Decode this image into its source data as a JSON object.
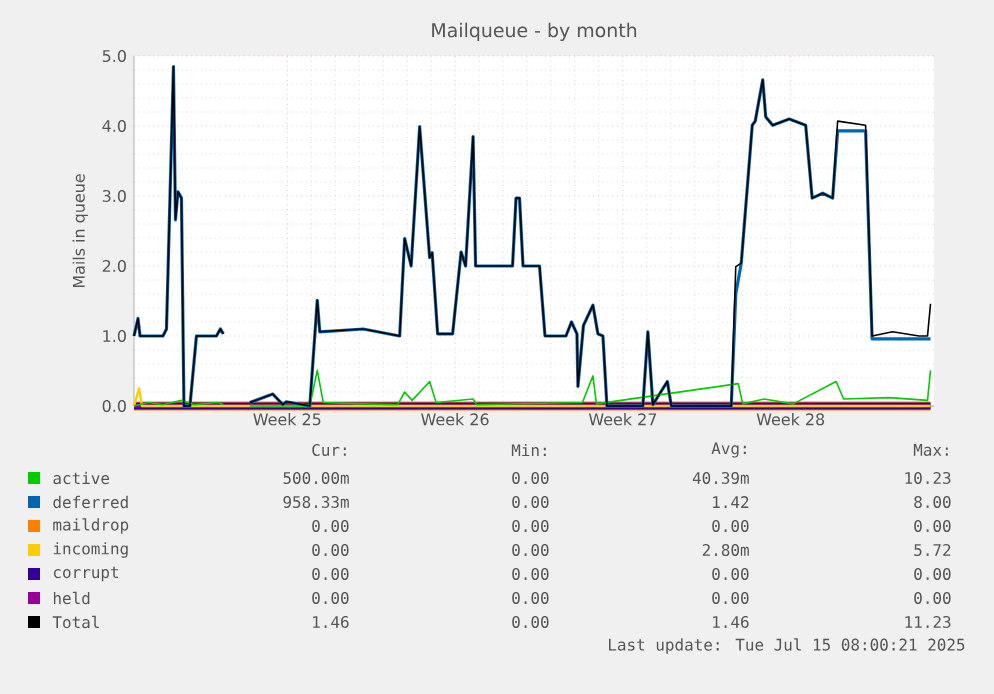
{
  "chart_data": {
    "type": "line",
    "title": "Mailqueue - by month",
    "ylabel": "Mails in queue",
    "xlim": [
      "2025-06-11T23:00",
      "2025-07-15T08:00"
    ],
    "ylim": [
      0,
      5
    ],
    "xticks": [
      {
        "value": "2025-06-18T08:30",
        "label": "Week 25"
      },
      {
        "value": "2025-06-25T08:30",
        "label": "Week 26"
      },
      {
        "value": "2025-07-02T08:30",
        "label": "Week 27"
      },
      {
        "value": "2025-07-09T08:30",
        "label": "Week 28"
      }
    ],
    "yticks": [
      {
        "value": 0,
        "label": "0.0"
      },
      {
        "value": 1,
        "label": "1.0"
      },
      {
        "value": 2,
        "label": "2.0"
      },
      {
        "value": 3,
        "label": "3.0"
      },
      {
        "value": 4,
        "label": "4.0"
      },
      {
        "value": 5,
        "label": "5.0"
      }
    ],
    "grid": true,
    "legend": "bottom",
    "marker": "none",
    "line_style": "solid",
    "series": [
      {
        "name": "active",
        "color": "#00cc00",
        "x": [
          "2025-06-11T23:00",
          "2025-06-12T13:30",
          "2025-06-13T04:00",
          "2025-06-13T23:00",
          "2025-06-14T11:00",
          "2025-06-15T11:00",
          "2025-06-15T16:30",
          "2025-06-16T04:00",
          "2025-06-16T19:00",
          "2025-06-19T07:00",
          "2025-06-19T14:30",
          "2025-06-19T20:30",
          "2025-06-21T11:00",
          "2025-06-22T23:00",
          "2025-06-23T06:00",
          "2025-06-23T13:30",
          "2025-06-24T07:00",
          "2025-06-24T13:30",
          "2025-06-26T02:30",
          "2025-06-26T06:00",
          "2025-06-30T16:00",
          "2025-07-01T02:30",
          "2025-07-01T06:00",
          "2025-07-07T04:00",
          "2025-07-07T08:30",
          "2025-07-08T06:00",
          "2025-07-09T11:00",
          "2025-07-11T06:00",
          "2025-07-11T13:30",
          "2025-07-13T11:00",
          "2025-07-15T01:30",
          "2025-07-15T04:30"
        ],
        "values": [
          0,
          0.05,
          0.02,
          0.08,
          0.02,
          0.05,
          0.02,
          null,
          0,
          0,
          0.51,
          0.05,
          0.03,
          0.02,
          0.2,
          0.08,
          0.35,
          0.05,
          0.1,
          0.02,
          0.05,
          0.43,
          0.03,
          0.32,
          0.03,
          0.1,
          0.03,
          0.35,
          0.1,
          0.12,
          0.08,
          0.51
        ]
      },
      {
        "name": "deferred",
        "color": "#0066b3",
        "x": [
          "2025-06-11T23:00",
          "2025-06-12T03:00",
          "2025-06-12T05:00",
          "2025-06-13T04:00",
          "2025-06-13T07:30",
          "2025-06-13T14:30",
          "2025-06-13T16:30",
          "2025-06-13T19:00",
          "2025-06-13T22:30",
          "2025-06-14T01:00",
          "2025-06-14T07:00",
          "2025-06-14T13:30",
          "2025-06-15T09:30",
          "2025-06-15T13:30",
          "2025-06-15T16:30",
          "2025-06-16T04:00",
          "2025-06-16T19:00",
          "2025-06-17T18:00",
          "2025-06-18T04:00",
          "2025-06-18T07:30",
          "2025-06-19T07:00",
          "2025-06-19T14:30",
          "2025-06-19T17:00",
          "2025-06-21T12:30",
          "2025-06-23T01:00",
          "2025-06-23T06:00",
          "2025-06-23T12:30",
          "2025-06-23T21:00",
          "2025-06-24T07:00",
          "2025-06-24T09:30",
          "2025-06-24T15:00",
          "2025-06-25T06:00",
          "2025-06-25T14:30",
          "2025-06-25T19:00",
          "2025-06-26T02:30",
          "2025-06-26T05:00",
          "2025-06-27T18:00",
          "2025-06-27T21:30",
          "2025-06-28T01:00",
          "2025-06-28T04:30",
          "2025-06-28T21:00",
          "2025-06-29T02:30",
          "2025-06-29T23:30",
          "2025-06-30T05:00",
          "2025-06-30T10:30",
          "2025-06-30T11:30",
          "2025-06-30T17:00",
          "2025-07-01T02:30",
          "2025-07-01T07:30",
          "2025-07-01T12:30",
          "2025-07-01T16:30",
          "2025-07-03T04:30",
          "2025-07-03T09:30",
          "2025-07-03T14:30",
          "2025-07-04T05:00",
          "2025-07-04T09:00",
          "2025-07-06T21:00",
          "2025-07-07T01:30",
          "2025-07-07T07:00",
          "2025-07-07T18:00",
          "2025-07-07T21:00",
          "2025-07-08T04:30",
          "2025-07-08T07:30",
          "2025-07-08T14:30",
          "2025-07-09T07:00",
          "2025-07-09T23:30",
          "2025-07-10T06:00",
          "2025-07-10T16:30",
          "2025-07-11T02:30",
          "2025-07-11T07:30",
          "2025-07-12T11:30",
          "2025-07-12T18:00",
          "2025-07-13T14:30",
          "2025-07-14T17:00",
          "2025-07-15T01:30",
          "2025-07-15T04:30"
        ],
        "values": [
          1.0,
          1.25,
          1.0,
          1.0,
          1.1,
          4.85,
          2.66,
          3.06,
          2.97,
          0,
          0,
          1.0,
          1.0,
          1.1,
          1.03,
          null,
          0.05,
          0.17,
          0.02,
          0.06,
          0,
          1.51,
          1.06,
          1.1,
          1.0,
          2.39,
          2.0,
          3.99,
          2.12,
          2.19,
          1.03,
          1.03,
          2.2,
          2.0,
          3.85,
          2.0,
          2.0,
          2.97,
          2.97,
          2.0,
          2.0,
          1.0,
          1.0,
          1.2,
          1.03,
          0.28,
          1.15,
          1.44,
          1.03,
          1.0,
          0,
          0,
          1.06,
          0.02,
          0.35,
          0,
          0,
          1.6,
          2.04,
          4.01,
          4.07,
          4.66,
          4.13,
          4.01,
          4.1,
          4.01,
          2.97,
          3.04,
          2.97,
          3.93,
          3.93,
          0.96,
          0.96,
          0.96,
          0.96,
          0.96
        ]
      },
      {
        "name": "maildrop",
        "color": "#ff8000",
        "x": [
          "2025-06-11T23:00",
          "2025-07-15T04:30"
        ],
        "values": [
          0,
          0
        ]
      },
      {
        "name": "incoming",
        "color": "#ffcc00",
        "x": [
          "2025-06-11T23:00",
          "2025-06-12T04:00",
          "2025-06-12T07:00",
          "2025-07-15T04:30"
        ],
        "values": [
          0,
          0.25,
          0,
          0
        ]
      },
      {
        "name": "corrupt",
        "color": "#330099",
        "x": [
          "2025-06-11T23:00",
          "2025-07-15T04:30"
        ],
        "values": [
          0,
          0
        ]
      },
      {
        "name": "held",
        "color": "#990099",
        "x": [
          "2025-06-11T23:00",
          "2025-07-15T04:30"
        ],
        "values": [
          0,
          0
        ]
      },
      {
        "name": "Total",
        "color": "#000000",
        "x": [
          "2025-06-11T23:00",
          "2025-06-12T03:00",
          "2025-06-12T05:00",
          "2025-06-13T04:00",
          "2025-06-13T07:30",
          "2025-06-13T14:30",
          "2025-06-13T16:30",
          "2025-06-13T19:00",
          "2025-06-13T22:30",
          "2025-06-14T01:00",
          "2025-06-14T07:00",
          "2025-06-14T13:30",
          "2025-06-15T09:30",
          "2025-06-15T13:30",
          "2025-06-15T16:30",
          "2025-06-16T04:00",
          "2025-06-16T19:00",
          "2025-06-17T18:00",
          "2025-06-18T04:00",
          "2025-06-18T07:30",
          "2025-06-19T07:00",
          "2025-06-19T14:30",
          "2025-06-19T17:00",
          "2025-06-21T12:30",
          "2025-06-23T01:00",
          "2025-06-23T06:00",
          "2025-06-23T12:30",
          "2025-06-23T21:00",
          "2025-06-24T07:00",
          "2025-06-24T09:30",
          "2025-06-24T15:00",
          "2025-06-25T06:00",
          "2025-06-25T14:30",
          "2025-06-25T19:00",
          "2025-06-26T02:30",
          "2025-06-26T05:00",
          "2025-06-27T18:00",
          "2025-06-27T21:30",
          "2025-06-28T01:00",
          "2025-06-28T04:30",
          "2025-06-28T21:00",
          "2025-06-29T02:30",
          "2025-06-29T23:30",
          "2025-06-30T05:00",
          "2025-06-30T10:30",
          "2025-06-30T11:30",
          "2025-06-30T17:00",
          "2025-07-01T02:30",
          "2025-07-01T07:30",
          "2025-07-01T12:30",
          "2025-07-01T16:30",
          "2025-07-03T04:30",
          "2025-07-03T09:30",
          "2025-07-03T14:30",
          "2025-07-04T05:00",
          "2025-07-04T09:00",
          "2025-07-06T21:00",
          "2025-07-07T01:30",
          "2025-07-07T07:00",
          "2025-07-07T18:00",
          "2025-07-07T21:00",
          "2025-07-08T04:30",
          "2025-07-08T07:30",
          "2025-07-08T14:30",
          "2025-07-09T07:00",
          "2025-07-09T23:30",
          "2025-07-10T06:00",
          "2025-07-10T16:30",
          "2025-07-11T02:30",
          "2025-07-11T07:30",
          "2025-07-12T11:30",
          "2025-07-12T18:00",
          "2025-07-13T14:30",
          "2025-07-14T17:00",
          "2025-07-15T01:30",
          "2025-07-15T04:30"
        ],
        "values": [
          1.0,
          1.25,
          1.0,
          1.0,
          1.1,
          4.85,
          2.66,
          3.06,
          2.97,
          0,
          0,
          1.0,
          1.0,
          1.1,
          1.03,
          null,
          0.05,
          0.17,
          0.02,
          0.06,
          0,
          1.51,
          1.06,
          1.1,
          1.0,
          2.39,
          2.0,
          3.99,
          2.12,
          2.19,
          1.03,
          1.03,
          2.2,
          2.0,
          3.85,
          2.0,
          2.0,
          2.97,
          2.97,
          2.0,
          2.0,
          1.0,
          1.0,
          1.2,
          1.03,
          0.28,
          1.15,
          1.44,
          1.03,
          1.0,
          0,
          0,
          1.06,
          0.02,
          0.35,
          0,
          0,
          1.99,
          2.04,
          4.01,
          4.07,
          4.66,
          4.13,
          4.01,
          4.1,
          4.01,
          2.97,
          3.04,
          2.97,
          4.07,
          4.01,
          1.0,
          1.06,
          1.0,
          1.0,
          1.46
        ]
      }
    ],
    "annotations": [
      "Cur:",
      "Min:",
      "Avg:",
      "Max:",
      "500.00m",
      "0.00",
      "40.39m",
      "10.23",
      "958.33m",
      "0.00",
      "1.42",
      "8.00",
      "0.00",
      "0.00",
      "0.00",
      "0.00",
      "0.00",
      "0.00",
      "2.80m",
      "5.72",
      "0.00",
      "0.00",
      "0.00",
      "0.00",
      "0.00",
      "0.00",
      "0.00",
      "0.00",
      "1.46",
      "0.00",
      "1.46",
      "11.23",
      "Last update: Tue Jul 15 08:00:21 2025"
    ]
  }
}
